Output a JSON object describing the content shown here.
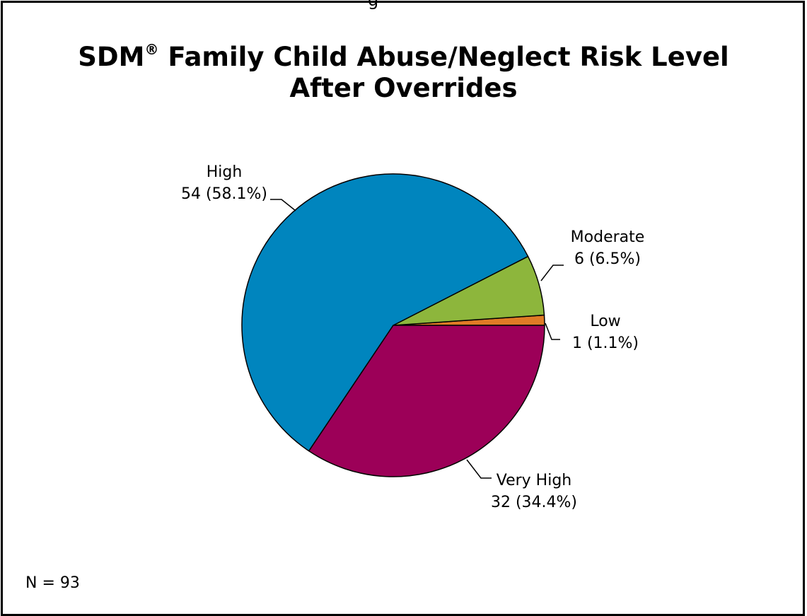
{
  "page": {
    "top_clipped_text": "g",
    "n_label": "N = 93"
  },
  "chart_data": {
    "type": "pie",
    "title_main": "SDM",
    "title_reg": "®",
    "title_rest": " Family Child Abuse/Neglect Risk Level",
    "title_line2": "After Overrides",
    "slices": [
      {
        "key": "high",
        "label": "High",
        "value": 54,
        "percent": 58.1,
        "value_text": "54 (58.1%)",
        "color": "#0085BE"
      },
      {
        "key": "moderate",
        "label": "Moderate",
        "value": 6,
        "percent": 6.5,
        "value_text": "6 (6.5%)",
        "color": "#8DB63C"
      },
      {
        "key": "low",
        "label": "Low",
        "value": 1,
        "percent": 1.1,
        "value_text": "1 (1.1%)",
        "color": "#E07B26"
      },
      {
        "key": "very_high",
        "label": "Very High",
        "value": 32,
        "percent": 34.4,
        "value_text": "32 (34.4%)",
        "color": "#9C0058"
      }
    ]
  }
}
